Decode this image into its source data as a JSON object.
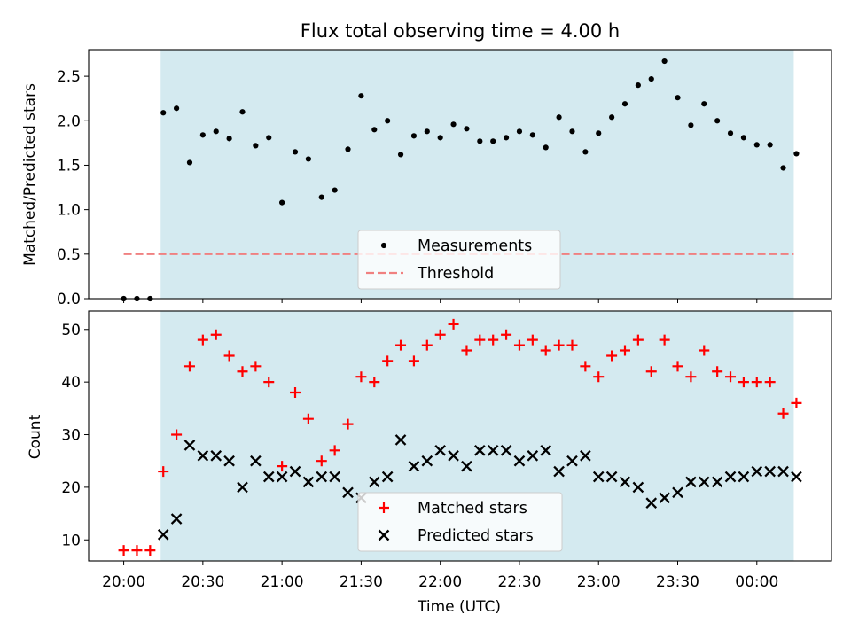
{
  "title": "Flux total observing time = 4.00 h",
  "colors": {
    "background_shade": "#d4eaf0",
    "measurements": "#000000",
    "threshold": "#f08080",
    "matched": "#ff0000",
    "predicted": "#000000"
  },
  "chart_data": [
    {
      "type": "scatter",
      "ylabel": "Matched/Predicted stars",
      "xlabel": "",
      "ylim": [
        0,
        2.8
      ],
      "yticks": [
        "0.0",
        "0.5",
        "1.0",
        "1.5",
        "2.0",
        "2.5"
      ],
      "shaded_interval": [
        "20:14",
        "24:14"
      ],
      "legend": {
        "placement": "lower center",
        "entries": [
          "Measurements",
          "Threshold"
        ]
      },
      "threshold": {
        "name": "Threshold",
        "value": 0.5,
        "x_range": [
          "20:00",
          "24:14"
        ]
      },
      "series": [
        {
          "name": "Measurements",
          "x": [
            "20:00",
            "20:05",
            "20:10",
            "20:15",
            "20:20",
            "20:25",
            "20:30",
            "20:35",
            "20:40",
            "20:45",
            "20:50",
            "20:55",
            "21:00",
            "21:05",
            "21:10",
            "21:15",
            "21:20",
            "21:25",
            "21:30",
            "21:35",
            "21:40",
            "21:45",
            "21:50",
            "21:55",
            "22:00",
            "22:05",
            "22:10",
            "22:15",
            "22:20",
            "22:25",
            "22:30",
            "22:35",
            "22:40",
            "22:45",
            "22:50",
            "22:55",
            "23:00",
            "23:05",
            "23:10",
            "23:15",
            "23:20",
            "23:25",
            "23:30",
            "23:35",
            "23:40",
            "23:45",
            "23:50",
            "23:55",
            "00:00",
            "00:05",
            "00:10",
            "00:15"
          ],
          "values": [
            0.0,
            0.0,
            0.0,
            2.09,
            2.14,
            1.53,
            1.84,
            1.88,
            1.8,
            2.1,
            1.72,
            1.81,
            1.08,
            1.65,
            1.57,
            1.14,
            1.22,
            1.68,
            2.28,
            1.9,
            2.0,
            1.62,
            1.83,
            1.88,
            1.81,
            1.96,
            1.91,
            1.77,
            1.77,
            1.81,
            1.88,
            1.84,
            1.7,
            2.04,
            1.88,
            1.65,
            1.86,
            2.04,
            2.19,
            2.4,
            2.47,
            2.67,
            2.26,
            1.95,
            2.19,
            2.0,
            1.86,
            1.81,
            1.73,
            1.73,
            1.47,
            1.63
          ]
        }
      ]
    },
    {
      "type": "scatter",
      "ylabel": "Count",
      "xlabel": "Time (UTC)",
      "ylim": [
        6,
        53.5
      ],
      "yticks": [
        "10",
        "20",
        "30",
        "40",
        "50"
      ],
      "xticks": [
        "20:00",
        "20:30",
        "21:00",
        "21:30",
        "22:00",
        "22:30",
        "23:00",
        "23:30",
        "00:00"
      ],
      "shaded_interval": [
        "20:14",
        "24:14"
      ],
      "legend": {
        "placement": "lower center",
        "entries": [
          "Matched stars",
          "Predicted stars"
        ]
      },
      "series": [
        {
          "name": "Matched stars",
          "marker": "+",
          "x": [
            "20:00",
            "20:05",
            "20:10",
            "20:15",
            "20:20",
            "20:25",
            "20:30",
            "20:35",
            "20:40",
            "20:45",
            "20:50",
            "20:55",
            "21:00",
            "21:05",
            "21:10",
            "21:15",
            "21:20",
            "21:25",
            "21:30",
            "21:35",
            "21:40",
            "21:45",
            "21:50",
            "21:55",
            "22:00",
            "22:05",
            "22:10",
            "22:15",
            "22:20",
            "22:25",
            "22:30",
            "22:35",
            "22:40",
            "22:45",
            "22:50",
            "22:55",
            "23:00",
            "23:05",
            "23:10",
            "23:15",
            "23:20",
            "23:25",
            "23:30",
            "23:35",
            "23:40",
            "23:45",
            "23:50",
            "23:55",
            "00:00",
            "00:05",
            "00:10",
            "00:15"
          ],
          "values": [
            8,
            8,
            8,
            23,
            30,
            43,
            48,
            49,
            45,
            42,
            43,
            40,
            24,
            38,
            33,
            25,
            27,
            32,
            41,
            40,
            44,
            47,
            44,
            47,
            49,
            51,
            46,
            48,
            48,
            49,
            47,
            48,
            46,
            47,
            47,
            43,
            41,
            45,
            46,
            48,
            42,
            48,
            43,
            41,
            46,
            42,
            41,
            40,
            40,
            40,
            34,
            36
          ]
        },
        {
          "name": "Predicted stars",
          "marker": "x",
          "x": [
            "20:15",
            "20:20",
            "20:25",
            "20:30",
            "20:35",
            "20:40",
            "20:45",
            "20:50",
            "20:55",
            "21:00",
            "21:05",
            "21:10",
            "21:15",
            "21:20",
            "21:25",
            "21:30",
            "21:35",
            "21:40",
            "21:45",
            "21:50",
            "21:55",
            "22:00",
            "22:05",
            "22:10",
            "22:15",
            "22:20",
            "22:25",
            "22:30",
            "22:35",
            "22:40",
            "22:45",
            "22:50",
            "22:55",
            "23:00",
            "23:05",
            "23:10",
            "23:15",
            "23:20",
            "23:25",
            "23:30",
            "23:35",
            "23:40",
            "23:45",
            "23:50",
            "23:55",
            "00:00",
            "00:05",
            "00:10",
            "00:15"
          ],
          "values": [
            11,
            14,
            28,
            26,
            26,
            25,
            20,
            25,
            22,
            22,
            23,
            21,
            22,
            22,
            19,
            18,
            21,
            22,
            29,
            24,
            25,
            27,
            26,
            24,
            27,
            27,
            27,
            25,
            26,
            27,
            23,
            25,
            26,
            22,
            22,
            21,
            20,
            17,
            18,
            19,
            21,
            21,
            21,
            22,
            22,
            23,
            23,
            23,
            22
          ]
        }
      ]
    }
  ]
}
